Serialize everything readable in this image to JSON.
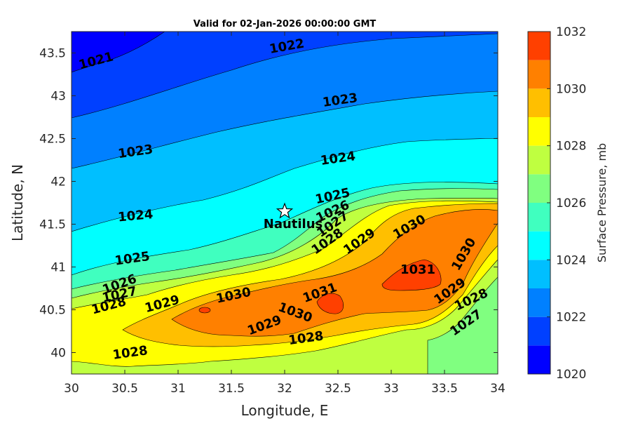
{
  "chart_data": {
    "type": "contour",
    "title": "Valid for 02-Jan-2026 00:00:00 GMT",
    "xlabel": "Longitude, E",
    "ylabel": "Latitude, N",
    "xlim": [
      30,
      34
    ],
    "ylim": [
      39.75,
      43.75
    ],
    "xticks": [
      "30",
      "30.5",
      "31",
      "31.5",
      "32",
      "32.5",
      "33",
      "33.5",
      "34"
    ],
    "yticks": [
      "40",
      "40.5",
      "41",
      "41.5",
      "42",
      "42.5",
      "43",
      "43.5"
    ],
    "colorbar": {
      "label": "Surface Pressure, mb",
      "range": [
        1020,
        1032
      ],
      "ticks": [
        "1020",
        "1022",
        "1024",
        "1026",
        "1028",
        "1030",
        "1032"
      ],
      "levels": [
        {
          "from": 1020,
          "to": 1021,
          "color": "#0000ff"
        },
        {
          "from": 1021,
          "to": 1022,
          "color": "#0040ff"
        },
        {
          "from": 1022,
          "to": 1023,
          "color": "#0080ff"
        },
        {
          "from": 1023,
          "to": 1024,
          "color": "#00bfff"
        },
        {
          "from": 1024,
          "to": 1025,
          "color": "#00ffff"
        },
        {
          "from": 1025,
          "to": 1026,
          "color": "#40ffbf"
        },
        {
          "from": 1026,
          "to": 1027,
          "color": "#80ff80"
        },
        {
          "from": 1027,
          "to": 1028,
          "color": "#bfff40"
        },
        {
          "from": 1028,
          "to": 1029,
          "color": "#ffff00"
        },
        {
          "from": 1029,
          "to": 1030,
          "color": "#ffbf00"
        },
        {
          "from": 1030,
          "to": 1031,
          "color": "#ff8000"
        },
        {
          "from": 1031,
          "to": 1032,
          "color": "#ff4000"
        }
      ]
    },
    "station": {
      "name": "Nautilus",
      "lon": 32.0,
      "lat": 41.65,
      "marker": "star"
    },
    "contour_labels": [
      {
        "text": "1021",
        "lon": 30.23,
        "lat": 43.41,
        "angle": -15
      },
      {
        "text": "1022",
        "lon": 32.02,
        "lat": 43.58,
        "angle": -10
      },
      {
        "text": "1023",
        "lon": 32.52,
        "lat": 42.95,
        "angle": -8
      },
      {
        "text": "1023",
        "lon": 30.6,
        "lat": 42.35,
        "angle": -8
      },
      {
        "text": "1024",
        "lon": 32.5,
        "lat": 42.27,
        "angle": -8
      },
      {
        "text": "1024",
        "lon": 30.6,
        "lat": 41.6,
        "angle": -5
      },
      {
        "text": "1025",
        "lon": 32.45,
        "lat": 41.83,
        "angle": -12
      },
      {
        "text": "1026",
        "lon": 32.45,
        "lat": 41.65,
        "angle": -25
      },
      {
        "text": "1027",
        "lon": 32.45,
        "lat": 41.5,
        "angle": -35
      },
      {
        "text": "1028",
        "lon": 32.4,
        "lat": 41.3,
        "angle": -35
      },
      {
        "text": "1029",
        "lon": 32.7,
        "lat": 41.3,
        "angle": -35
      },
      {
        "text": "1025",
        "lon": 30.57,
        "lat": 41.1,
        "angle": -8
      },
      {
        "text": "1026",
        "lon": 30.45,
        "lat": 40.8,
        "angle": -20
      },
      {
        "text": "1027",
        "lon": 30.45,
        "lat": 40.68,
        "angle": -12
      },
      {
        "text": "1028",
        "lon": 30.35,
        "lat": 40.55,
        "angle": -15
      },
      {
        "text": "1029",
        "lon": 30.85,
        "lat": 40.57,
        "angle": -15
      },
      {
        "text": "1030",
        "lon": 31.52,
        "lat": 40.67,
        "angle": -12
      },
      {
        "text": "1031",
        "lon": 32.33,
        "lat": 40.7,
        "angle": -20
      },
      {
        "text": "1030",
        "lon": 32.1,
        "lat": 40.47,
        "angle": 20
      },
      {
        "text": "1029",
        "lon": 31.81,
        "lat": 40.32,
        "angle": -20
      },
      {
        "text": "1028",
        "lon": 32.2,
        "lat": 40.17,
        "angle": -8
      },
      {
        "text": "1028",
        "lon": 30.55,
        "lat": 40.0,
        "angle": -8
      },
      {
        "text": "1030",
        "lon": 33.17,
        "lat": 41.47,
        "angle": -30
      },
      {
        "text": "1031",
        "lon": 33.25,
        "lat": 40.97,
        "angle": 0
      },
      {
        "text": "1030",
        "lon": 33.68,
        "lat": 41.15,
        "angle": -60
      },
      {
        "text": "1029",
        "lon": 33.55,
        "lat": 40.72,
        "angle": -35
      },
      {
        "text": "1028",
        "lon": 33.75,
        "lat": 40.62,
        "angle": -25
      },
      {
        "text": "1027",
        "lon": 33.7,
        "lat": 40.35,
        "angle": -35
      }
    ]
  }
}
